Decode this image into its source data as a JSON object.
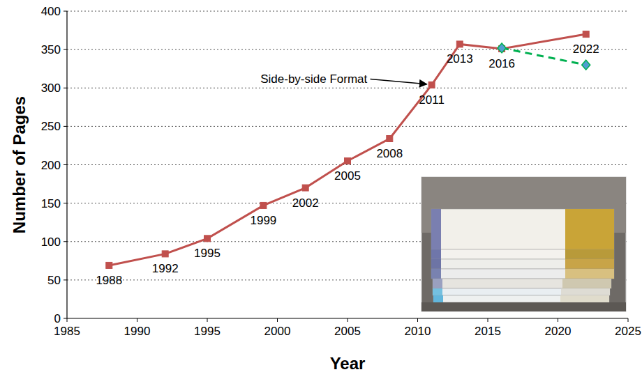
{
  "chart_data": {
    "type": "line",
    "x_label": "Year",
    "y_label": "Number of Pages",
    "xlim": [
      1985,
      2025
    ],
    "xticks": [
      1985,
      1990,
      1995,
      2000,
      2005,
      2010,
      2015,
      2020,
      2025
    ],
    "ylim": [
      0,
      400
    ],
    "yticks": [
      0,
      50,
      100,
      150,
      200,
      250,
      300,
      350,
      400
    ],
    "grid": true,
    "series": [
      {
        "color": "#c0504d",
        "marker": "square",
        "line_style": "solid",
        "x": [
          1988,
          1992,
          1995,
          1999,
          2002,
          2005,
          2008,
          2011,
          2013,
          2016,
          2022
        ],
        "values": [
          69,
          84,
          104,
          147,
          170,
          205,
          234,
          304,
          357,
          351,
          370
        ]
      },
      {
        "color": "#00b050",
        "marker": "diamond",
        "line_style": "dashed",
        "x": [
          2016,
          2022
        ],
        "values": [
          352,
          330
        ]
      }
    ],
    "annotations": [
      {
        "text": "1988",
        "x": 1988,
        "y": 69
      },
      {
        "text": "1992",
        "x": 1992,
        "y": 84
      },
      {
        "text": "1995",
        "x": 1995,
        "y": 104
      },
      {
        "text": "1999",
        "x": 1999,
        "y": 147
      },
      {
        "text": "2002",
        "x": 2002,
        "y": 170
      },
      {
        "text": "2005",
        "x": 2005,
        "y": 205
      },
      {
        "text": "2008",
        "x": 2008,
        "y": 234
      },
      {
        "text": "2011",
        "x": 2011,
        "y": 304
      },
      {
        "text": "2013",
        "x": 2013,
        "y": 357
      },
      {
        "text": "2016",
        "x": 2016,
        "y": 351
      },
      {
        "text": "2022",
        "x": 2022,
        "y": 370
      }
    ],
    "callout": {
      "text": "Side-by-side Format",
      "x": 2002.6,
      "y": 312,
      "arrow_x": 2011,
      "arrow_y": 304
    }
  }
}
